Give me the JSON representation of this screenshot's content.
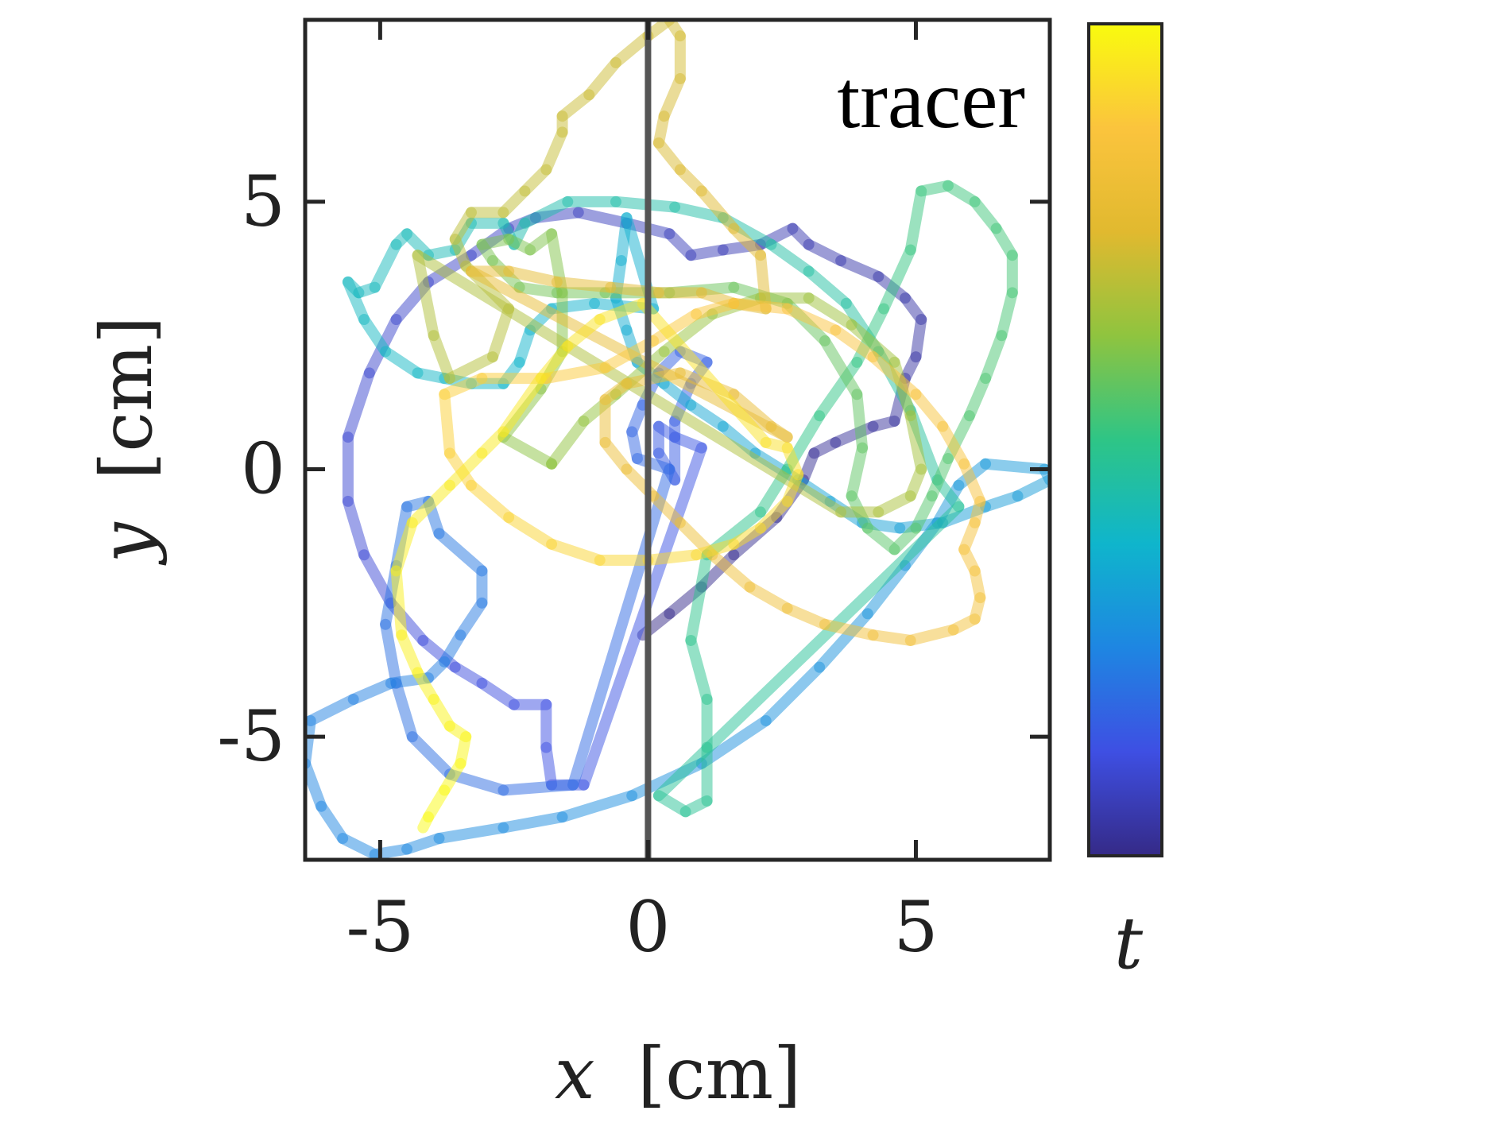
{
  "chart_data": {
    "type": "line",
    "title": "",
    "annotation": "tracer",
    "xlabel": "x [cm]",
    "xlabel_var": "x",
    "xlabel_unit": "[cm]",
    "ylabel": "y [cm]",
    "ylabel_var": "y",
    "ylabel_unit": "[cm]",
    "xlim": [
      -6.4,
      7.5
    ],
    "ylim": [
      -7.3,
      8.4
    ],
    "xticks": [
      -5,
      0,
      5
    ],
    "yticks": [
      -5,
      0,
      5
    ],
    "xtick_labels": [
      "-5",
      "0",
      "5"
    ],
    "ytick_labels": [
      "-5",
      "0",
      "5"
    ],
    "grid": false,
    "reference_line": {
      "x": 0,
      "color": "#555555"
    },
    "colorbar": {
      "label": "t",
      "colormap": "parula",
      "colors": [
        "#352a87",
        "#3e4fe3",
        "#1e86e2",
        "#0fb5cc",
        "#2ec586",
        "#8fc43f",
        "#e1b92f",
        "#fbc43d",
        "#f9fb0e"
      ]
    },
    "trajectory_opacity": 0.5,
    "series": [
      {
        "values": [
          [
            -0.1,
            -3.1
          ],
          [
            0.4,
            -2.7
          ],
          [
            1.0,
            -2.2
          ],
          [
            1.6,
            -1.6
          ],
          [
            2.4,
            -0.9
          ],
          [
            2.9,
            -0.2
          ],
          [
            3.1,
            0.3
          ],
          [
            3.5,
            0.5
          ],
          [
            4.2,
            0.8
          ],
          [
            4.6,
            0.9
          ],
          [
            4.8,
            1.7
          ],
          [
            5.0,
            2.1
          ],
          [
            5.1,
            2.8
          ],
          [
            4.8,
            3.2
          ],
          [
            4.3,
            3.6
          ],
          [
            3.6,
            3.9
          ],
          [
            3.0,
            4.2
          ],
          [
            2.7,
            4.5
          ],
          [
            2.1,
            4.2
          ],
          [
            1.4,
            4.1
          ],
          [
            0.8,
            4.0
          ],
          [
            0.4,
            4.4
          ],
          [
            -0.4,
            4.6
          ],
          [
            -1.3,
            4.8
          ],
          [
            -2.1,
            4.7
          ],
          [
            -2.6,
            4.5
          ],
          [
            -3.3,
            4.0
          ],
          [
            -4.1,
            3.5
          ],
          [
            -4.7,
            2.8
          ],
          [
            -5.2,
            1.8
          ],
          [
            -5.6,
            0.6
          ],
          [
            -5.6,
            -0.6
          ],
          [
            -5.3,
            -1.6
          ],
          [
            -4.8,
            -2.5
          ],
          [
            -4.2,
            -3.2
          ],
          [
            -3.6,
            -3.7
          ],
          [
            -3.1,
            -4.0
          ],
          [
            -2.5,
            -4.4
          ],
          [
            -1.9,
            -4.4
          ],
          [
            -1.9,
            -5.2
          ],
          [
            -1.8,
            -5.9
          ],
          [
            -1.2,
            -5.9
          ]
        ]
      },
      {
        "values": [
          [
            1.0,
            0.4
          ],
          [
            0.5,
            0.6
          ],
          [
            0.2,
            0.8
          ],
          [
            0.2,
            0.3
          ],
          [
            0.5,
            -0.2
          ],
          [
            0.5,
            0.9
          ],
          [
            0.8,
            1.6
          ],
          [
            1.1,
            2.0
          ],
          [
            0.6,
            2.2
          ],
          [
            0.2,
            1.8
          ],
          [
            -0.1,
            1.2
          ],
          [
            -0.3,
            0.7
          ],
          [
            -0.2,
            0.2
          ],
          [
            0.4,
            0.0
          ]
        ]
      },
      {
        "values": [
          [
            -1.4,
            -5.9
          ],
          [
            -2.7,
            -6.0
          ],
          [
            -3.7,
            -5.7
          ],
          [
            -4.4,
            -5.0
          ],
          [
            -4.7,
            -4.0
          ],
          [
            -4.9,
            -2.9
          ],
          [
            -4.7,
            -1.8
          ],
          [
            -4.5,
            -0.7
          ],
          [
            -4.1,
            -0.6
          ],
          [
            -3.9,
            -1.2
          ],
          [
            -3.1,
            -1.9
          ],
          [
            -3.1,
            -2.5
          ],
          [
            -3.5,
            -3.1
          ],
          [
            -3.8,
            -3.6
          ],
          [
            -4.1,
            -3.9
          ],
          [
            -4.8,
            -4.0
          ],
          [
            -5.5,
            -4.3
          ],
          [
            -6.3,
            -4.7
          ],
          [
            -6.4,
            -5.5
          ],
          [
            -6.1,
            -6.3
          ],
          [
            -5.7,
            -6.9
          ],
          [
            -5.1,
            -7.2
          ],
          [
            -4.5,
            -7.1
          ],
          [
            -3.9,
            -6.9
          ],
          [
            -2.7,
            -6.7
          ],
          [
            -1.6,
            -6.5
          ],
          [
            -0.3,
            -6.1
          ],
          [
            1.0,
            -5.5
          ],
          [
            2.2,
            -4.7
          ],
          [
            3.2,
            -3.7
          ],
          [
            4.1,
            -2.7
          ],
          [
            4.8,
            -1.8
          ],
          [
            5.4,
            -1.0
          ],
          [
            5.8,
            -0.3
          ],
          [
            6.3,
            0.1
          ],
          [
            7.4,
            0.0
          ],
          [
            7.5,
            -0.2
          ],
          [
            6.9,
            -0.5
          ],
          [
            6.3,
            -0.7
          ],
          [
            5.5,
            -1.0
          ],
          [
            4.7,
            -1.1
          ],
          [
            4.0,
            -1.0
          ],
          [
            3.4,
            -0.6
          ],
          [
            2.8,
            -0.2
          ],
          [
            2.0,
            0.3
          ],
          [
            1.4,
            0.8
          ],
          [
            0.8,
            1.2
          ],
          [
            0.3,
            1.6
          ],
          [
            -0.2,
            2.0
          ],
          [
            -0.4,
            2.6
          ],
          [
            -0.6,
            3.2
          ],
          [
            -0.5,
            3.9
          ],
          [
            -0.4,
            4.7
          ]
        ]
      },
      {
        "values": [
          [
            0.1,
            3.0
          ],
          [
            -1.0,
            3.1
          ],
          [
            -1.8,
            3.0
          ],
          [
            -2.2,
            2.6
          ],
          [
            -2.4,
            2.0
          ],
          [
            -2.7,
            1.6
          ],
          [
            -3.3,
            1.6
          ],
          [
            -3.8,
            1.7
          ],
          [
            -4.3,
            1.8
          ],
          [
            -4.9,
            2.2
          ],
          [
            -5.3,
            2.8
          ],
          [
            -5.6,
            3.5
          ],
          [
            -5.4,
            3.3
          ],
          [
            -5.1,
            3.4
          ],
          [
            -4.7,
            4.2
          ],
          [
            -4.5,
            4.4
          ],
          [
            -4.1,
            4.0
          ],
          [
            -3.6,
            4.1
          ],
          [
            -3.3,
            4.6
          ],
          [
            -2.7,
            4.6
          ],
          [
            -2.5,
            4.2
          ],
          [
            -2.3,
            4.6
          ],
          [
            -1.5,
            5.0
          ],
          [
            -0.6,
            5.0
          ],
          [
            0.5,
            4.9
          ],
          [
            1.4,
            4.7
          ],
          [
            2.3,
            4.2
          ],
          [
            3.0,
            3.7
          ],
          [
            3.7,
            3.1
          ],
          [
            4.3,
            2.2
          ],
          [
            4.9,
            1.1
          ],
          [
            5.4,
            -0.2
          ],
          [
            5.8,
            -0.7
          ]
        ]
      },
      {
        "values": [
          [
            0.2,
            -6.1
          ],
          [
            0.7,
            -6.4
          ],
          [
            1.1,
            -6.2
          ],
          [
            1.1,
            -5.2
          ],
          [
            1.1,
            -4.3
          ],
          [
            0.8,
            -3.2
          ],
          [
            1.1,
            -1.6
          ],
          [
            2.1,
            -0.8
          ],
          [
            2.6,
            0.0
          ],
          [
            3.2,
            1.0
          ],
          [
            3.9,
            2.0
          ],
          [
            4.4,
            3.0
          ],
          [
            4.9,
            4.1
          ],
          [
            5.1,
            5.2
          ],
          [
            5.6,
            5.3
          ],
          [
            6.1,
            5.0
          ],
          [
            6.5,
            4.5
          ],
          [
            6.8,
            4.0
          ],
          [
            6.8,
            3.3
          ],
          [
            6.6,
            2.5
          ],
          [
            6.3,
            1.7
          ],
          [
            6.0,
            1.0
          ],
          [
            5.6,
            0.2
          ],
          [
            5.3,
            -0.5
          ],
          [
            5.0,
            -1.1
          ],
          [
            4.6,
            -1.5
          ],
          [
            4.1,
            -1.1
          ],
          [
            3.8,
            -0.5
          ],
          [
            4.0,
            0.4
          ],
          [
            3.9,
            1.4
          ],
          [
            3.3,
            2.4
          ],
          [
            2.6,
            3.1
          ],
          [
            1.6,
            3.4
          ],
          [
            0.4,
            3.3
          ],
          [
            -0.8,
            3.3
          ],
          [
            -1.7,
            3.3
          ],
          [
            -2.4,
            3.4
          ],
          [
            -2.9,
            3.9
          ],
          [
            -3.1,
            4.2
          ],
          [
            -2.6,
            4.3
          ],
          [
            -2.2,
            4.1
          ],
          [
            -1.8,
            4.4
          ],
          [
            -1.6,
            3.3
          ],
          [
            -1.6,
            2.2
          ],
          [
            -2.0,
            1.5
          ],
          [
            -2.7,
            0.6
          ],
          [
            -1.8,
            0.1
          ]
        ]
      },
      {
        "values": [
          [
            -1.8,
            0.1
          ],
          [
            -1.2,
            0.9
          ],
          [
            -0.6,
            1.4
          ],
          [
            0.3,
            2.2
          ],
          [
            1.2,
            2.9
          ],
          [
            2.1,
            3.2
          ],
          [
            3.0,
            3.2
          ],
          [
            3.8,
            2.7
          ],
          [
            4.6,
            2.0
          ],
          [
            4.9,
            1.0
          ],
          [
            5.1,
            0.0
          ],
          [
            4.9,
            -0.5
          ],
          [
            4.3,
            -0.8
          ],
          [
            3.6,
            -0.8
          ]
        ]
      },
      {
        "values": [
          [
            -4.3,
            4.0
          ],
          [
            -4.0,
            2.5
          ],
          [
            -3.7,
            1.7
          ],
          [
            -2.9,
            2.1
          ],
          [
            -2.6,
            3.0
          ],
          [
            -3.4,
            3.8
          ],
          [
            -3.6,
            4.3
          ],
          [
            -3.3,
            4.8
          ],
          [
            -2.7,
            4.8
          ],
          [
            -2.3,
            5.2
          ],
          [
            -1.9,
            5.6
          ],
          [
            -1.6,
            6.3
          ],
          [
            -1.6,
            6.6
          ],
          [
            -1.1,
            7.0
          ],
          [
            -0.6,
            7.6
          ],
          [
            0.0,
            8.1
          ],
          [
            0.4,
            8.4
          ],
          [
            0.6,
            8.1
          ],
          [
            0.6,
            7.3
          ],
          [
            0.3,
            6.6
          ],
          [
            0.2,
            6.1
          ],
          [
            0.6,
            5.6
          ],
          [
            1.0,
            5.2
          ],
          [
            1.6,
            4.5
          ],
          [
            2.1,
            4.0
          ],
          [
            2.2,
            3.0
          ],
          [
            1.6,
            3.1
          ],
          [
            1.0,
            3.3
          ],
          [
            0.2,
            3.3
          ],
          [
            -0.7,
            3.4
          ],
          [
            -1.7,
            3.5
          ],
          [
            -2.6,
            3.7
          ],
          [
            -3.3,
            3.7
          ]
        ]
      },
      {
        "values": [
          [
            2.6,
            0.6
          ],
          [
            2.3,
            0.8
          ],
          [
            1.6,
            1.4
          ],
          [
            0.6,
            1.8
          ],
          [
            -0.4,
            1.6
          ],
          [
            -0.8,
            1.3
          ],
          [
            -0.8,
            0.5
          ],
          [
            -0.4,
            0.0
          ],
          [
            0.1,
            -0.5
          ],
          [
            0.6,
            -1.0
          ],
          [
            1.2,
            -1.6
          ],
          [
            1.9,
            -2.2
          ],
          [
            2.6,
            -2.6
          ],
          [
            3.3,
            -2.9
          ],
          [
            4.2,
            -3.1
          ],
          [
            4.9,
            -3.2
          ],
          [
            5.7,
            -3.0
          ],
          [
            6.1,
            -2.8
          ],
          [
            6.2,
            -2.4
          ],
          [
            6.1,
            -1.9
          ],
          [
            5.9,
            -1.5
          ],
          [
            6.1,
            -1.0
          ],
          [
            6.2,
            -0.6
          ],
          [
            5.9,
            0.1
          ],
          [
            5.5,
            0.8
          ],
          [
            5.0,
            1.4
          ],
          [
            4.2,
            2.1
          ],
          [
            3.5,
            2.6
          ],
          [
            2.6,
            3.0
          ],
          [
            1.6,
            3.1
          ],
          [
            0.9,
            2.9
          ],
          [
            0.1,
            2.4
          ],
          [
            -0.8,
            1.9
          ],
          [
            -1.9,
            1.7
          ],
          [
            -3.1,
            1.7
          ],
          [
            -3.8,
            1.4
          ],
          [
            -3.7,
            0.3
          ],
          [
            -3.3,
            -0.3
          ],
          [
            -2.6,
            -0.9
          ],
          [
            -1.8,
            -1.4
          ],
          [
            -0.9,
            -1.7
          ],
          [
            0.0,
            -1.7
          ],
          [
            0.9,
            -1.6
          ],
          [
            1.6,
            -1.4
          ],
          [
            2.1,
            -1.1
          ],
          [
            2.6,
            -0.6
          ],
          [
            2.8,
            -0.1
          ],
          [
            2.6,
            0.4
          ],
          [
            2.2,
            0.5
          ]
        ]
      },
      {
        "values": [
          [
            -0.1,
            3.1
          ],
          [
            -0.9,
            2.8
          ],
          [
            -1.5,
            2.3
          ],
          [
            -2.0,
            1.7
          ],
          [
            -2.7,
            0.7
          ],
          [
            -3.1,
            0.3
          ],
          [
            -3.7,
            -0.3
          ],
          [
            -4.4,
            -1.0
          ],
          [
            -4.7,
            -1.9
          ],
          [
            -4.6,
            -3.1
          ],
          [
            -4.3,
            -3.8
          ],
          [
            -4.0,
            -4.3
          ],
          [
            -3.7,
            -4.8
          ],
          [
            -3.4,
            -5.0
          ],
          [
            -3.5,
            -5.5
          ],
          [
            -3.8,
            -6.0
          ],
          [
            -4.1,
            -6.5
          ],
          [
            -4.2,
            -6.7
          ]
        ]
      }
    ]
  }
}
